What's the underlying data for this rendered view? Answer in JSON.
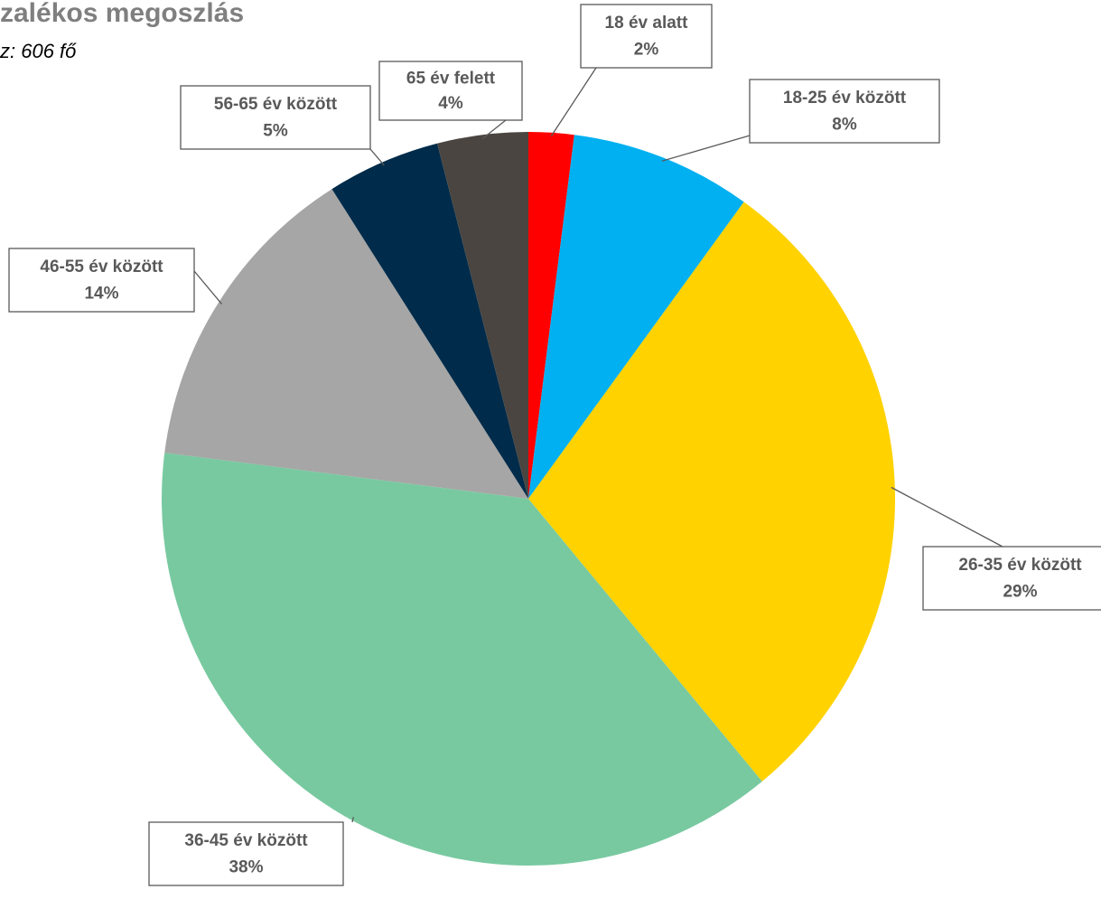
{
  "chart_data": {
    "type": "pie",
    "title": "zalékos megoszlás",
    "subtitle": "z: 606 fő",
    "categories": [
      "18 év alatt",
      "18-25 év között",
      "26-35 év között",
      "36-45 év között",
      "46-55 év között",
      "56-65 év között",
      "65 év felett"
    ],
    "values": [
      2,
      8,
      29,
      38,
      14,
      5,
      4
    ],
    "value_labels": [
      "2%",
      "8%",
      "29%",
      "38%",
      "14%",
      "5%",
      "4%"
    ],
    "colors": [
      "#ff0000",
      "#00b0f0",
      "#ffd200",
      "#78c9a0",
      "#a6a6a6",
      "#002b4a",
      "#4a4540"
    ]
  }
}
